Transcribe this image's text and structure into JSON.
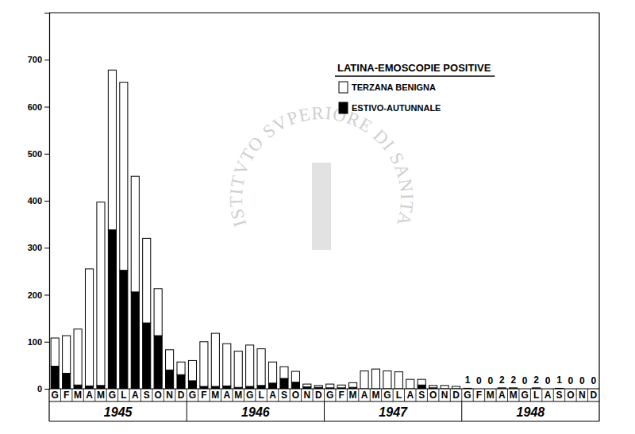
{
  "chart_data": {
    "type": "bar",
    "title": "LATINA-EMOSCOPIE POSITIVE",
    "stacked": true,
    "legend": "upper right",
    "grid": false,
    "categories": [
      "G",
      "F",
      "M",
      "A",
      "M",
      "G",
      "L",
      "A",
      "S",
      "O",
      "N",
      "D",
      "G",
      "F",
      "M",
      "A",
      "M",
      "G",
      "L",
      "A",
      "S",
      "O",
      "N",
      "D",
      "G",
      "F",
      "M",
      "A",
      "M",
      "G",
      "L",
      "A",
      "S",
      "O",
      "N",
      "D",
      "G",
      "F",
      "M",
      "A",
      "M",
      "G",
      "L",
      "A",
      "S",
      "O",
      "N",
      "D"
    ],
    "year_labels": [
      "1945",
      "1946",
      "1947",
      "1948"
    ],
    "annotations": [
      "ISTITVTO SVPERIORE DI SANITA"
    ],
    "ylim": [
      0,
      800
    ],
    "yticks": [
      0,
      100,
      200,
      300,
      400,
      500,
      600,
      700
    ],
    "series": [
      {
        "name": "TERZANA BENIGNA",
        "color": "#ffffff",
        "data_labels": true,
        "values": [
          60,
          80,
          119,
          249,
          390,
          340,
          400,
          246,
          180,
          100,
          43,
          27,
          43,
          95,
          113,
          90,
          77,
          88,
          78,
          45,
          25,
          23,
          6,
          4,
          8,
          6,
          10,
          38,
          42,
          38,
          36,
          20,
          12,
          5,
          7,
          5,
          1,
          0,
          0,
          2,
          2,
          0,
          2,
          0,
          1,
          0,
          0,
          0
        ],
        "value_labels": [
          null,
          null,
          null,
          null,
          null,
          null,
          null,
          null,
          null,
          null,
          null,
          null,
          null,
          null,
          null,
          null,
          null,
          null,
          null,
          null,
          null,
          null,
          null,
          null,
          null,
          null,
          null,
          null,
          null,
          null,
          null,
          null,
          null,
          null,
          null,
          null,
          "1",
          "0",
          "0",
          "2",
          "2",
          "0",
          "2",
          "0",
          "1",
          "0",
          "0",
          "0"
        ]
      },
      {
        "name": "ESTIVO-AUTUNNALE",
        "color": "#000000",
        "values": [
          48,
          33,
          8,
          6,
          7,
          338,
          252,
          206,
          140,
          113,
          40,
          30,
          17,
          5,
          5,
          6,
          3,
          5,
          7,
          12,
          22,
          14,
          4,
          3,
          2,
          2,
          3,
          0,
          0,
          0,
          0,
          0,
          8,
          2,
          0,
          0,
          0,
          0,
          0,
          0,
          0,
          0,
          0,
          0,
          0,
          0,
          0,
          0
        ]
      }
    ]
  }
}
